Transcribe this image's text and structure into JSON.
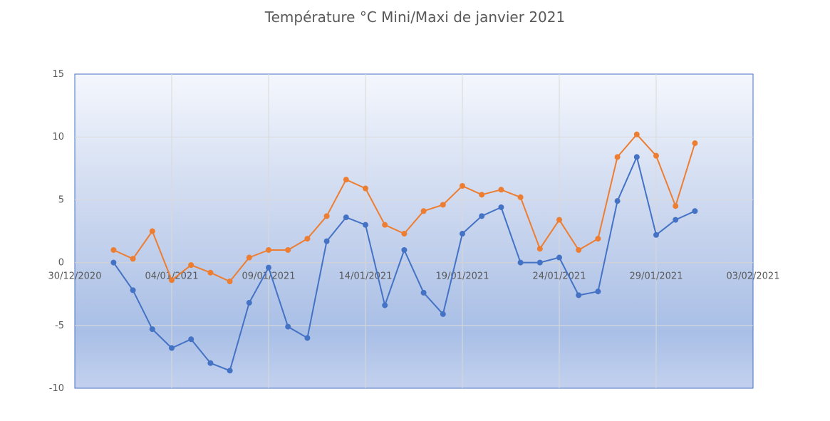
{
  "chart_data": {
    "type": "line",
    "title": "Température °C Mini/Maxi de janvier 2021",
    "xlabel": "",
    "ylabel": "",
    "ylim": [
      -10,
      15
    ],
    "y_ticks": [
      15,
      10,
      5,
      0,
      -5,
      -10
    ],
    "x_range": [
      "30/12/2020",
      "03/02/2021"
    ],
    "x_ticks": [
      "30/12/2020",
      "04/01/2021",
      "09/01/2021",
      "14/01/2021",
      "19/01/2021",
      "24/01/2021",
      "29/01/2021",
      "03/02/2021"
    ],
    "grid": true,
    "legend": "none",
    "x": [
      "01/01/2021",
      "02/01/2021",
      "03/01/2021",
      "04/01/2021",
      "05/01/2021",
      "06/01/2021",
      "07/01/2021",
      "08/01/2021",
      "09/01/2021",
      "10/01/2021",
      "11/01/2021",
      "12/01/2021",
      "13/01/2021",
      "14/01/2021",
      "15/01/2021",
      "16/01/2021",
      "17/01/2021",
      "18/01/2021",
      "19/01/2021",
      "20/01/2021",
      "21/01/2021",
      "22/01/2021",
      "23/01/2021",
      "24/01/2021",
      "25/01/2021",
      "26/01/2021",
      "27/01/2021",
      "28/01/2021",
      "29/01/2021",
      "30/01/2021",
      "31/01/2021"
    ],
    "series": [
      {
        "color": "#4472C4",
        "values": [
          0.0,
          -2.2,
          -5.3,
          -6.8,
          -6.1,
          -8.0,
          -8.6,
          -3.2,
          -0.4,
          -5.1,
          -6.0,
          1.7,
          3.6,
          3.0,
          -3.4,
          1.0,
          -2.4,
          -4.1,
          2.3,
          3.7,
          4.4,
          0.0,
          0.0,
          0.4,
          -2.6,
          -2.3,
          4.9,
          8.4,
          2.2,
          3.4,
          4.1
        ]
      },
      {
        "color": "#ED7D31",
        "values": [
          1.0,
          0.3,
          2.5,
          -1.4,
          -0.2,
          -0.8,
          -1.5,
          0.4,
          1.0,
          1.0,
          1.9,
          3.7,
          6.6,
          5.9,
          3.0,
          2.3,
          4.1,
          4.6,
          6.1,
          5.4,
          5.8,
          5.2,
          1.1,
          3.4,
          1.0,
          1.9,
          8.4,
          10.2,
          8.5,
          4.5,
          9.5
        ]
      }
    ]
  }
}
